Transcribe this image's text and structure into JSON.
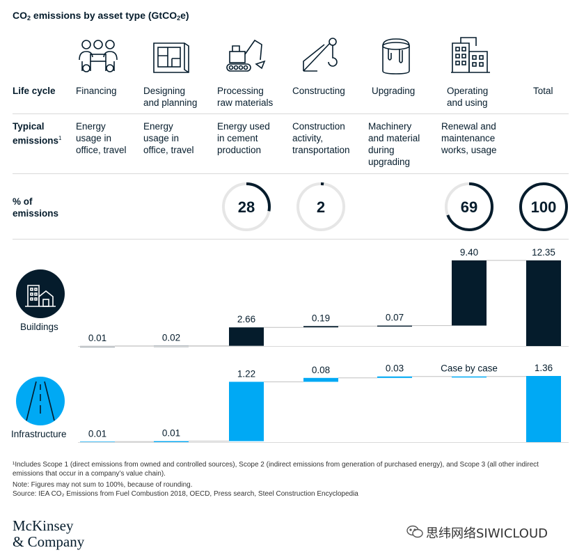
{
  "title_main": "CO",
  "title_sub": "2",
  "title_rest": " emissions by asset type (GtCO",
  "title_sub2": "2",
  "title_end": "e)",
  "row_labels": {
    "life_cycle": "Life cycle",
    "typical": "Typical\nemissions",
    "typical_sup": "1",
    "percent": "% of\nemissions"
  },
  "stages": [
    {
      "name": "Financing",
      "icon": "meeting-icon",
      "typical": "Energy\nusage in\noffice, travel"
    },
    {
      "name": "Designing\nand planning",
      "icon": "blueprint-icon",
      "typical": "Energy\nusage in\noffice, travel"
    },
    {
      "name": "Processing\nraw materials",
      "icon": "excavator-icon",
      "typical": "Energy used\nin cement\nproduction"
    },
    {
      "name": "Constructing",
      "icon": "crane-icon",
      "typical": "Construction\nactivity,\ntransportation"
    },
    {
      "name": "Upgrading",
      "icon": "paint-bucket-icon",
      "typical": "Machinery\nand material\nduring\nupgrading"
    },
    {
      "name": "Operating\nand using",
      "icon": "buildings-icon",
      "typical": "Renewal and\nmaintenance\nworks, usage"
    },
    {
      "name": "Total",
      "icon": "",
      "typical": ""
    }
  ],
  "percent_rings": [
    {
      "stage": 2,
      "label": "28",
      "value": 28
    },
    {
      "stage": 3,
      "label": "2",
      "value": 2
    },
    {
      "stage": 5,
      "label": "69",
      "value": 69
    },
    {
      "stage": 6,
      "label": "100",
      "value": 100
    }
  ],
  "sector_labels": {
    "buildings": "Buildings",
    "infrastructure": "Infrastructure"
  },
  "colors": {
    "buildings": "#051c2c",
    "infrastructure": "#00a9f4",
    "ring_track": "#e6e6e6",
    "text": "#051c2c"
  },
  "chart_data": [
    {
      "type": "bar",
      "name": "Buildings",
      "categories": [
        "Financing",
        "Designing and planning",
        "Processing raw materials",
        "Constructing",
        "Upgrading",
        "Operating and using",
        "Total"
      ],
      "values": [
        0.01,
        0.02,
        2.66,
        0.19,
        0.07,
        9.4,
        12.35
      ],
      "labels": [
        "0.01",
        "0.02",
        "2.66",
        "0.19",
        "0.07",
        "9.40",
        "12.35"
      ],
      "waterfall": true
    },
    {
      "type": "bar",
      "name": "Infrastructure",
      "categories": [
        "Financing",
        "Designing and planning",
        "Processing raw materials",
        "Constructing",
        "Upgrading",
        "Operating and using",
        "Total"
      ],
      "values": [
        0.01,
        0.01,
        1.22,
        0.08,
        0.03,
        null,
        1.36
      ],
      "labels": [
        "0.01",
        "0.01",
        "1.22",
        "0.08",
        "0.03",
        "Case by case",
        "1.36"
      ],
      "waterfall": true
    }
  ],
  "footnotes": [
    "¹Includes Scope 1 (direct emissions from owned and controlled sources), Scope 2 (indirect emissions from generation of purchased energy), and Scope 3 (all other indirect emissions that occur in a company’s value chain).",
    "Note: Figures may not sum to 100%, because of rounding.",
    "Source: IEA CO₂ Emissions from Fuel Combustion 2018, OECD, Press search, Steel Construction Encyclopedia"
  ],
  "brand": "McKinsey\n& Company",
  "watermark": "思纬网络SIWICLOUD"
}
